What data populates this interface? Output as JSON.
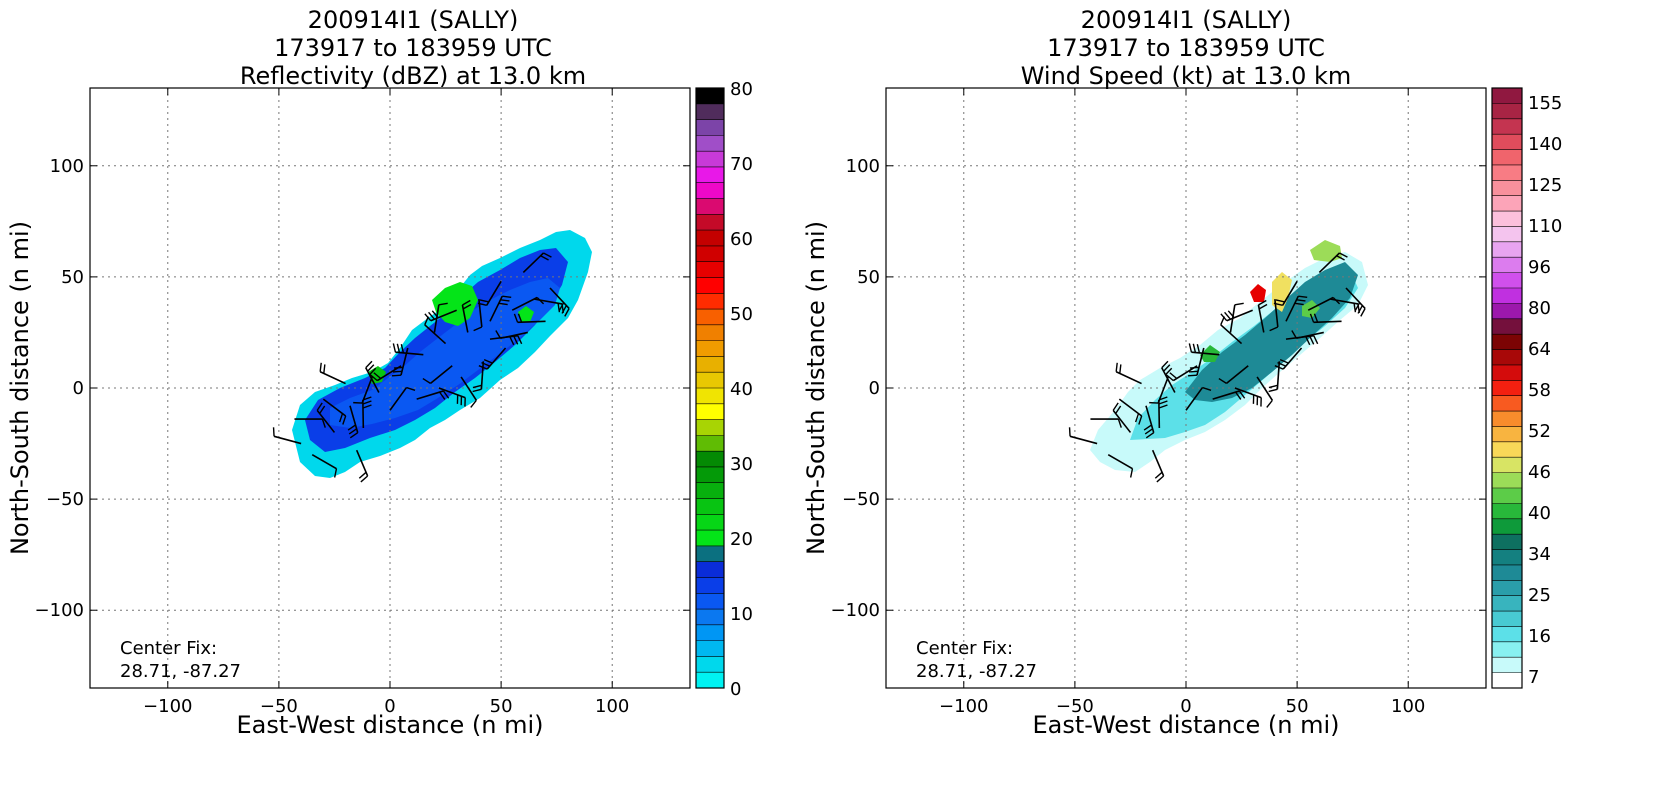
{
  "panels": [
    {
      "title_lines": [
        "200914I1 (SALLY)",
        "173917 to 183959 UTC",
        "Reflectivity (dBZ) at 13.0 km"
      ],
      "xlabel": "East-West distance (n mi)",
      "ylabel": "North-South distance (n mi)",
      "xticks": [
        -100,
        -50,
        0,
        50,
        100
      ],
      "yticks": [
        -100,
        -50,
        0,
        50,
        100
      ],
      "xlim": [
        -135,
        135
      ],
      "ylim": [
        -135,
        135
      ],
      "center_fix": {
        "label": "Center Fix:",
        "value": "28.71, -87.27"
      },
      "colorbar": {
        "labels": [
          "0",
          "10",
          "20",
          "30",
          "40",
          "50",
          "60",
          "70",
          "80"
        ],
        "colors": [
          "#00f2f2",
          "#00d8ec",
          "#00b8f0",
          "#0096f4",
          "#0b78f0",
          "#0a58f2",
          "#0a3ee8",
          "#0a2cd8",
          "#0b7080",
          "#04e418",
          "#06d616",
          "#08c412",
          "#08b00e",
          "#049a08",
          "#048a04",
          "#60bc04",
          "#a8d404",
          "#ffff00",
          "#f0e402",
          "#e8c802",
          "#e8b000",
          "#f09c00",
          "#f08000",
          "#f86000",
          "#ff2c00",
          "#ff0000",
          "#e60000",
          "#d00000",
          "#c40000",
          "#c40a28",
          "#da0a70",
          "#ee08c8",
          "#e818e8",
          "#c83ad8",
          "#a04ec8",
          "#7c44a8",
          "#502c5c",
          "#000000"
        ]
      },
      "chart_data": {
        "type": "heatmap",
        "title": "200914I1 (SALLY) 173917 to 183959 UTC Reflectivity (dBZ) at 13.0 km",
        "xlabel": "East-West distance (n mi)",
        "ylabel": "North-South distance (n mi)",
        "xlim": [
          -135,
          135
        ],
        "ylim": [
          -135,
          135
        ],
        "colorbar_range": [
          0,
          80
        ],
        "field_extent_x": [
          -48,
          92
        ],
        "field_extent_y": [
          -42,
          77
        ],
        "dominant_values_dbz": [
          5,
          10,
          12
        ],
        "local_maxima_dbz": [
          {
            "x": 30,
            "y": 45,
            "value": 22
          },
          {
            "x": -5,
            "y": 8,
            "value": 20
          },
          {
            "x": 60,
            "y": 33,
            "value": 20
          }
        ]
      }
    },
    {
      "title_lines": [
        "200914I1 (SALLY)",
        "173917 to 183959 UTC",
        "Wind Speed (kt) at 13.0 km"
      ],
      "xlabel": "East-West distance (n mi)",
      "ylabel": "North-South distance (n mi)",
      "xticks": [
        -100,
        -50,
        0,
        50,
        100
      ],
      "yticks": [
        -100,
        -50,
        0,
        50,
        100
      ],
      "xlim": [
        -135,
        135
      ],
      "ylim": [
        -135,
        135
      ],
      "center_fix": {
        "label": "Center Fix:",
        "value": "28.71, -87.27"
      },
      "colorbar": {
        "labels": [
          "7",
          "16",
          "25",
          "34",
          "40",
          "46",
          "52",
          "58",
          "64",
          "80",
          "96",
          "110",
          "125",
          "140",
          "155"
        ],
        "colors": [
          "#ffffff",
          "#c8fafa",
          "#88f0f0",
          "#5ce0e8",
          "#48cad2",
          "#38b4be",
          "#2a9eaa",
          "#1e8a96",
          "#148080",
          "#0e7060",
          "#0e9a3a",
          "#28b83a",
          "#5ccc48",
          "#9cdc58",
          "#d8e464",
          "#f8d858",
          "#f8b440",
          "#f88c2c",
          "#f85a20",
          "#f42010",
          "#d40c0c",
          "#a80808",
          "#7c0404",
          "#74103c",
          "#9c18ac",
          "#c030e0",
          "#d050ec",
          "#dc7cee",
          "#e8a4f0",
          "#f4c4ee",
          "#fcc0dc",
          "#fca4b8",
          "#f8909c",
          "#f87c84",
          "#f0646c",
          "#e04c5c",
          "#c43450",
          "#a82444",
          "#901840"
        ]
      },
      "chart_data": {
        "type": "heatmap",
        "title": "200914I1 (SALLY) 173917 to 183959 UTC Wind Speed (kt) at 13.0 km",
        "xlabel": "East-West distance (n mi)",
        "ylabel": "North-South distance (n mi)",
        "xlim": [
          -135,
          135
        ],
        "ylim": [
          -135,
          135
        ],
        "colorbar_range": [
          7,
          160
        ],
        "field_extent_x": [
          -50,
          82
        ],
        "field_extent_y": [
          -38,
          67
        ],
        "dominant_values_kt": [
          12,
          20,
          25,
          30
        ],
        "local_maxima_kt": [
          {
            "x": 32,
            "y": 45,
            "value": 60
          },
          {
            "x": 45,
            "y": 40,
            "value": 48
          },
          {
            "x": 60,
            "y": 62,
            "value": 40
          }
        ]
      }
    }
  ],
  "wind_barbs": [
    {
      "x": -43,
      "y": -14
    },
    {
      "x": -30,
      "y": -5
    },
    {
      "x": -18,
      "y": -8
    },
    {
      "x": -8,
      "y": 5
    },
    {
      "x": 5,
      "y": 10
    },
    {
      "x": 15,
      "y": 15
    },
    {
      "x": 25,
      "y": 20
    },
    {
      "x": 35,
      "y": 25
    },
    {
      "x": 45,
      "y": 30
    },
    {
      "x": 55,
      "y": 35
    },
    {
      "x": 65,
      "y": 40
    },
    {
      "x": 72,
      "y": 45
    },
    {
      "x": 40,
      "y": 40
    },
    {
      "x": 50,
      "y": 48
    },
    {
      "x": 30,
      "y": 35
    },
    {
      "x": -40,
      "y": -25
    },
    {
      "x": -25,
      "y": -20
    },
    {
      "x": -12,
      "y": -18
    },
    {
      "x": 0,
      "y": -10
    },
    {
      "x": 12,
      "y": -5
    },
    {
      "x": 22,
      "y": 0
    },
    {
      "x": 32,
      "y": 5
    },
    {
      "x": 42,
      "y": 12
    },
    {
      "x": 52,
      "y": 18
    },
    {
      "x": 62,
      "y": 25
    },
    {
      "x": -20,
      "y": 2
    },
    {
      "x": -5,
      "y": -2
    },
    {
      "x": 20,
      "y": 25
    },
    {
      "x": 60,
      "y": 52
    },
    {
      "x": 45,
      "y": 22
    },
    {
      "x": -35,
      "y": -30
    },
    {
      "x": -15,
      "y": -28
    },
    {
      "x": 8,
      "y": 18
    },
    {
      "x": 28,
      "y": 10
    },
    {
      "x": 70,
      "y": 30
    }
  ]
}
